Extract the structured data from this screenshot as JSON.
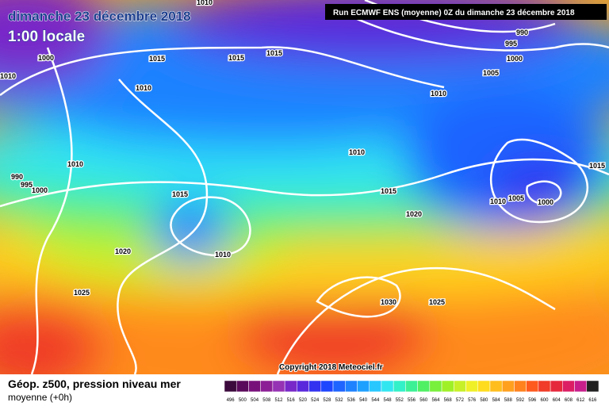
{
  "header": {
    "title": "dimanche 23 décembre 2018",
    "time": "1:00 locale",
    "run": "Run ECMWF ENS (moyenne) 0Z du dimanche 23 décembre 2018"
  },
  "map": {
    "isobar_labels": [
      "1000",
      "1010",
      "1010",
      "1015",
      "1015",
      "1015",
      "1010",
      "1010",
      "990",
      "995",
      "1000",
      "1015",
      "1020",
      "1010",
      "1025",
      "1010",
      "1015",
      "1020",
      "1030",
      "1025",
      "1010",
      "1005",
      "1000",
      "995",
      "990",
      "1010",
      "1005",
      "1000",
      "1015"
    ],
    "copyright": "Copyright 2018 Meteociel.fr"
  },
  "legend": {
    "title": "Géop. z500, pression niveau mer",
    "subtitle": "moyenne  (+0h)",
    "scale": [
      496,
      500,
      504,
      508,
      512,
      516,
      520,
      524,
      528,
      532,
      536,
      540,
      544,
      548,
      552,
      556,
      560,
      564,
      568,
      572,
      576,
      580,
      584,
      588,
      592,
      596,
      600,
      604,
      608,
      612,
      616
    ],
    "colors": [
      "#3c0a3c",
      "#5a0a5a",
      "#78107a",
      "#8c1e96",
      "#9632b4",
      "#7828c8",
      "#5a28dc",
      "#3232f0",
      "#1e46ff",
      "#1e64ff",
      "#1e82ff",
      "#1ea0ff",
      "#28c8ff",
      "#32e6f0",
      "#32f0c8",
      "#3cf096",
      "#50f064",
      "#78f03c",
      "#a0f028",
      "#c8f028",
      "#f0f028",
      "#ffdc1e",
      "#ffbe1e",
      "#ffa01e",
      "#ff821e",
      "#ff5a1e",
      "#f03c28",
      "#e6283c",
      "#dc1e64",
      "#c81e8c",
      "#202020"
    ]
  }
}
